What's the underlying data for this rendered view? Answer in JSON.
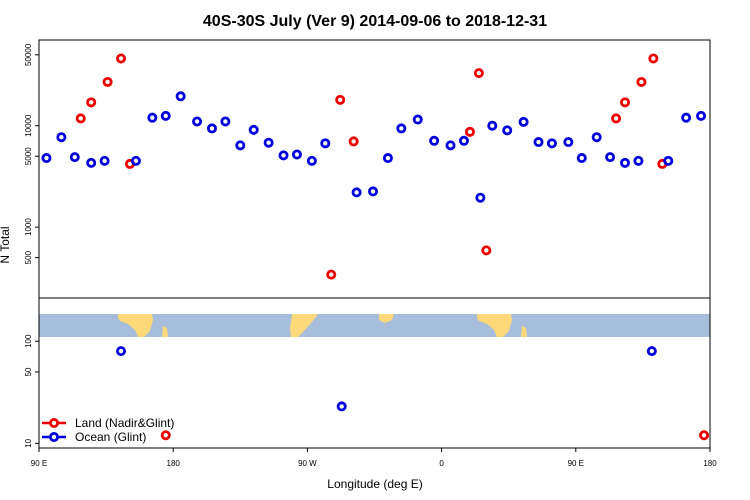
{
  "chart_data": {
    "type": "scatter",
    "title": "40S-30S July (Ver 9)   2014-09-06 to 2018-12-31",
    "xlabel": "Longitude (deg E)",
    "ylabel": "N Total",
    "yscale": "log",
    "xlim": [
      90,
      540
    ],
    "top_panel_ylim": [
      200,
      70000
    ],
    "bottom_panel_ylim": [
      9,
      110
    ],
    "x_ticks": [
      {
        "value": 90,
        "label": "90 E"
      },
      {
        "value": 180,
        "label": "180"
      },
      {
        "value": 270,
        "label": "90 W"
      },
      {
        "value": 360,
        "label": "0"
      },
      {
        "value": 450,
        "label": "90 E"
      },
      {
        "value": 540,
        "label": "180"
      }
    ],
    "top_y_ticks": [
      {
        "value": 500,
        "label": "500"
      },
      {
        "value": 1000,
        "label": "1000"
      },
      {
        "value": 5000,
        "label": "5000"
      },
      {
        "value": 10000,
        "label": "10000"
      },
      {
        "value": 50000,
        "label": "50000"
      }
    ],
    "bottom_y_ticks": [
      {
        "value": 10,
        "label": "10"
      },
      {
        "value": 50,
        "label": "50"
      },
      {
        "value": 100,
        "label": "100"
      }
    ],
    "legend_position": "bottom-left",
    "map_strip_colors": {
      "ocean": "#a6bddb",
      "land": "#fdd97a"
    },
    "series": [
      {
        "name": "Land (Nadir&Glint)",
        "color": "#ee0000",
        "top": [
          {
            "x": 118,
            "y": 11800
          },
          {
            "x": 125,
            "y": 17000
          },
          {
            "x": 136,
            "y": 27000
          },
          {
            "x": 145,
            "y": 46000
          },
          {
            "x": 151,
            "y": 4200
          },
          {
            "x": 286,
            "y": 340
          },
          {
            "x": 292,
            "y": 18000
          },
          {
            "x": 301,
            "y": 7000
          },
          {
            "x": 379,
            "y": 8700
          },
          {
            "x": 385,
            "y": 33000
          },
          {
            "x": 390,
            "y": 590
          },
          {
            "x": 477,
            "y": 11800
          },
          {
            "x": 483,
            "y": 17000
          },
          {
            "x": 494,
            "y": 27000
          },
          {
            "x": 502,
            "y": 46000
          },
          {
            "x": 508,
            "y": 4200
          }
        ],
        "bottom": [
          {
            "x": 175,
            "y": 12
          },
          {
            "x": 536,
            "y": 12
          }
        ]
      },
      {
        "name": "Ocean (Glint)",
        "color": "#0000dd",
        "top": [
          {
            "x": 95,
            "y": 4800
          },
          {
            "x": 105,
            "y": 7700
          },
          {
            "x": 114,
            "y": 4900
          },
          {
            "x": 125,
            "y": 4300
          },
          {
            "x": 134,
            "y": 4500
          },
          {
            "x": 155,
            "y": 4500
          },
          {
            "x": 166,
            "y": 12000
          },
          {
            "x": 175,
            "y": 12500
          },
          {
            "x": 185,
            "y": 19500
          },
          {
            "x": 196,
            "y": 11000
          },
          {
            "x": 206,
            "y": 9400
          },
          {
            "x": 215,
            "y": 11000
          },
          {
            "x": 225,
            "y": 6400
          },
          {
            "x": 234,
            "y": 9100
          },
          {
            "x": 244,
            "y": 6800
          },
          {
            "x": 254,
            "y": 5100
          },
          {
            "x": 263,
            "y": 5200
          },
          {
            "x": 273,
            "y": 4500
          },
          {
            "x": 282,
            "y": 6700
          },
          {
            "x": 303,
            "y": 2200
          },
          {
            "x": 314,
            "y": 2250
          },
          {
            "x": 324,
            "y": 4800
          },
          {
            "x": 333,
            "y": 9400
          },
          {
            "x": 344,
            "y": 11500
          },
          {
            "x": 355,
            "y": 7100
          },
          {
            "x": 366,
            "y": 6400
          },
          {
            "x": 375,
            "y": 7100
          },
          {
            "x": 386,
            "y": 1950
          },
          {
            "x": 394,
            "y": 10000
          },
          {
            "x": 404,
            "y": 9000
          },
          {
            "x": 415,
            "y": 10900
          },
          {
            "x": 425,
            "y": 6900
          },
          {
            "x": 434,
            "y": 6700
          },
          {
            "x": 445,
            "y": 6900
          },
          {
            "x": 454,
            "y": 4800
          },
          {
            "x": 464,
            "y": 7700
          },
          {
            "x": 473,
            "y": 4900
          },
          {
            "x": 483,
            "y": 4300
          },
          {
            "x": 492,
            "y": 4500
          },
          {
            "x": 512,
            "y": 4500
          },
          {
            "x": 524,
            "y": 12000
          },
          {
            "x": 534,
            "y": 12500
          }
        ],
        "bottom": [
          {
            "x": 145,
            "y": 80
          },
          {
            "x": 293,
            "y": 23
          },
          {
            "x": 501,
            "y": 80
          }
        ]
      }
    ]
  }
}
